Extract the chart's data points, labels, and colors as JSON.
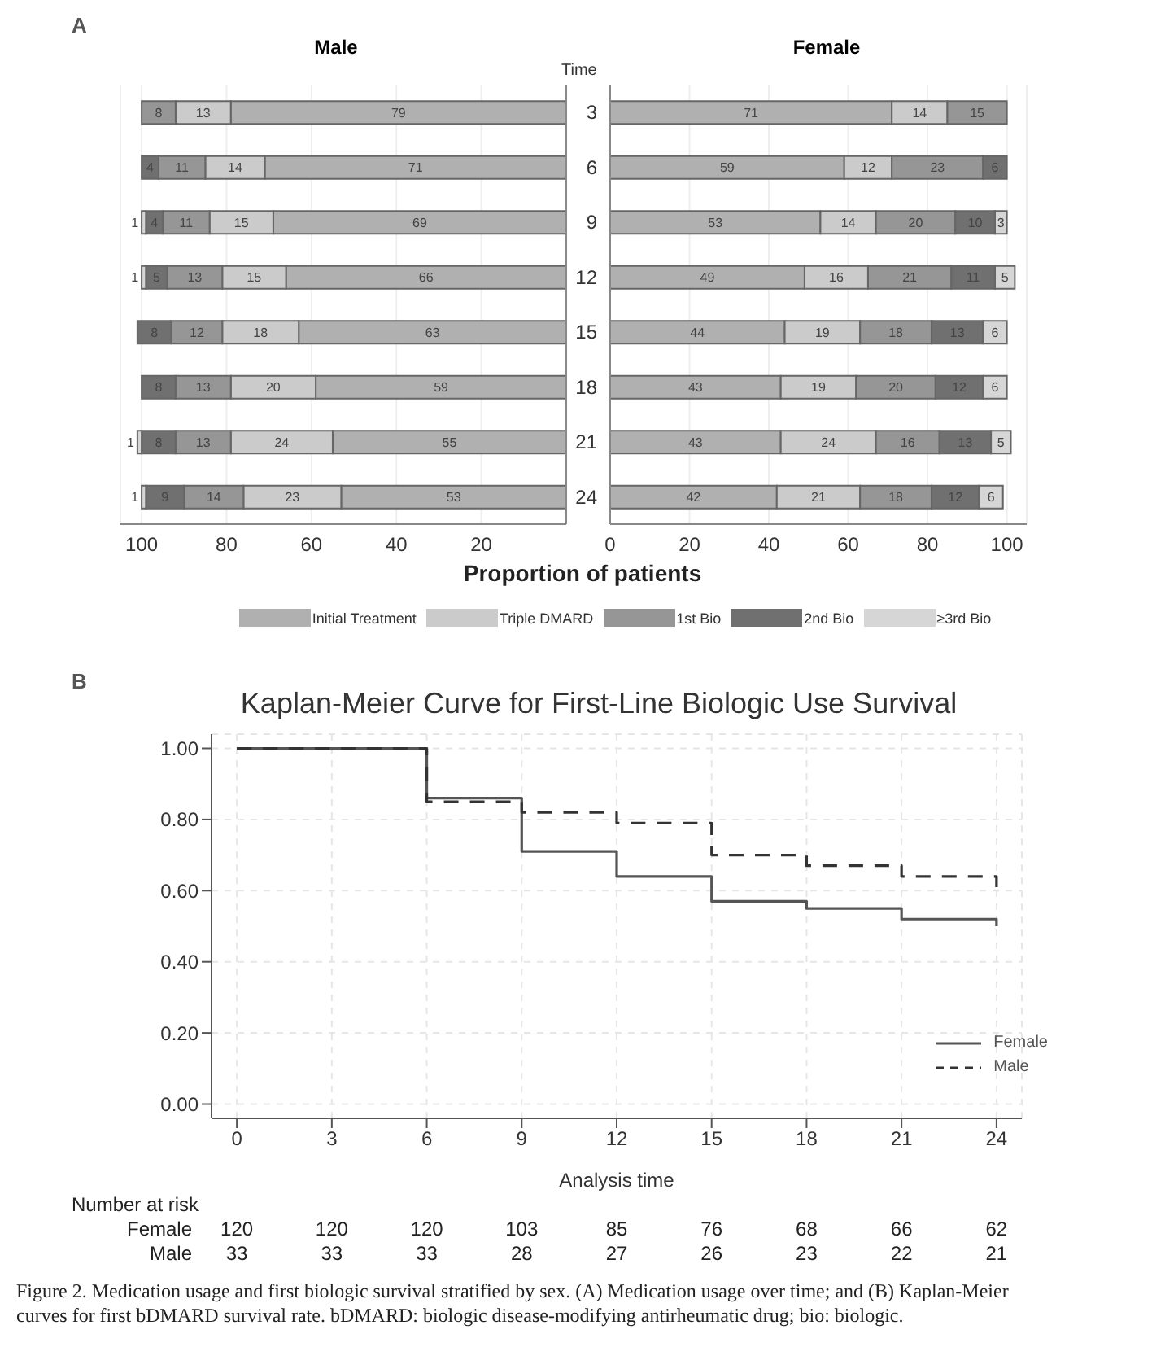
{
  "chart_data": [
    {
      "type": "bar",
      "orientation": "horizontal",
      "stacked": true,
      "title": "Male",
      "xlabel": "Proportion of patients",
      "annotations": [
        "A"
      ],
      "categories": [
        "3",
        "6",
        "9",
        "12",
        "15",
        "18",
        "21",
        "24"
      ],
      "series": [
        {
          "name": "Initial Treatment",
          "color": "#b0b0b0",
          "values": [
            79,
            71,
            69,
            66,
            63,
            59,
            55,
            53
          ]
        },
        {
          "name": "Triple DMARD",
          "color": "#cbcbcb",
          "values": [
            13,
            14,
            15,
            15,
            18,
            20,
            24,
            23
          ]
        },
        {
          "name": "1st Bio",
          "color": "#969696",
          "values": [
            8,
            11,
            11,
            13,
            12,
            13,
            13,
            14
          ]
        },
        {
          "name": "2nd Bio",
          "color": "#707070",
          "values": [
            null,
            4,
            4,
            5,
            8,
            8,
            8,
            9
          ]
        },
        {
          "name": "≥3rd Bio",
          "color": "#d6d6d6",
          "values": [
            null,
            null,
            1,
            1,
            null,
            null,
            1,
            1
          ]
        }
      ],
      "xlim": [
        105,
        0
      ],
      "xticks": [
        100,
        80,
        60,
        40,
        20
      ],
      "grid": "x",
      "data_labels": true,
      "tick_labels": "x",
      "legend": "bottom"
    },
    {
      "type": "bar",
      "orientation": "horizontal",
      "stacked": true,
      "title": "Female",
      "ylabel": "Time",
      "categories": [
        "3",
        "6",
        "9",
        "12",
        "15",
        "18",
        "21",
        "24"
      ],
      "series": [
        {
          "color": "#b0b0b0",
          "values": [
            71,
            59,
            53,
            49,
            44,
            43,
            43,
            42
          ]
        },
        {
          "color": "#cbcbcb",
          "values": [
            14,
            12,
            14,
            16,
            19,
            19,
            24,
            21
          ]
        },
        {
          "color": "#969696",
          "values": [
            15,
            23,
            20,
            21,
            18,
            20,
            16,
            18
          ]
        },
        {
          "color": "#707070",
          "values": [
            null,
            6,
            10,
            11,
            13,
            12,
            13,
            12
          ]
        },
        {
          "color": "#d6d6d6",
          "values": [
            null,
            null,
            3,
            5,
            6,
            6,
            5,
            6
          ]
        }
      ],
      "xlim": [
        0,
        105
      ],
      "xticks": [
        0,
        20,
        40,
        60,
        80,
        100
      ],
      "grid": "x",
      "data_labels": true
    },
    {
      "type": "step",
      "title": "Kaplan-Meier Curve for First-Line Biologic Use Survival",
      "xlabel": "Analysis time",
      "x": [
        0,
        6,
        9,
        12,
        15,
        18,
        21,
        24,
        24
      ],
      "series": [
        {
          "name": "Female",
          "color": "#555555",
          "line_style": "solid",
          "values": [
            1.0,
            0.86,
            0.71,
            0.64,
            0.57,
            0.55,
            0.52,
            0.52,
            0.5
          ]
        },
        {
          "name": "Male",
          "color": "#333333",
          "line_style": "dashed",
          "values": [
            1.0,
            0.85,
            0.82,
            0.79,
            0.7,
            0.67,
            0.64,
            0.64,
            0.61
          ]
        }
      ],
      "xlim": [
        -0.8,
        24.8
      ],
      "xticks": [
        0,
        3,
        6,
        9,
        12,
        15,
        18,
        21,
        24
      ],
      "ylim": [
        -0.04,
        1.04
      ],
      "yticks": [
        {
          "value": 0,
          "label": "0.00"
        },
        {
          "value": 0.2,
          "label": "0.20"
        },
        {
          "value": 0.4,
          "label": "0.40"
        },
        {
          "value": 0.6,
          "label": "0.60"
        },
        {
          "value": 0.8,
          "label": "0.80"
        },
        {
          "value": 1,
          "label": "1.00"
        }
      ],
      "grid": true,
      "legend": "bottom right",
      "marker": "none",
      "annotations": [
        "B",
        "Number at risk",
        "Female",
        "120",
        "120",
        "120",
        "103",
        "85",
        "76",
        "68",
        "66",
        "62",
        "Male",
        "33",
        "33",
        "33",
        "28",
        "27",
        "26",
        "23",
        "22",
        "21",
        "Figure 2. Medication usage and first biologic survival stratified by sex. (A) Medication usage over time; and (B) Kaplan-Meier curves for first bDMARD survival rate. bDMARD: biologic disease-modifying antirheumatic drug; bio: biologic."
      ]
    }
  ]
}
